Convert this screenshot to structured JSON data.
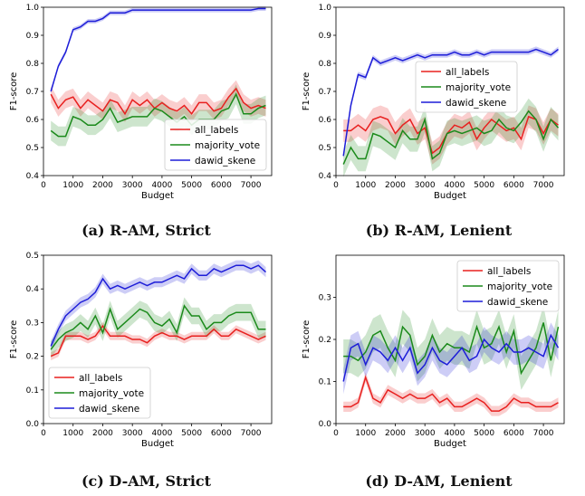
{
  "chart_data": [
    {
      "type": "line",
      "caption": "(a) R-AM, Strict",
      "xlabel": "Budget",
      "ylabel": "F1-score",
      "xlim": [
        0,
        7700
      ],
      "ylim": [
        0.4,
        1.0
      ],
      "xticks": [
        0,
        1000,
        2000,
        3000,
        4000,
        5000,
        6000,
        7000
      ],
      "yticks": [
        0.4,
        0.5,
        0.6,
        0.7,
        0.8,
        0.9,
        1.0
      ],
      "ytick_labels": [
        "0.4",
        "0.5",
        "0.6",
        "0.7",
        "0.8",
        "0.9",
        "1.0"
      ],
      "legend_position": "lower-right",
      "x": [
        250,
        500,
        750,
        1000,
        1250,
        1500,
        1750,
        2000,
        2250,
        2500,
        2750,
        3000,
        3250,
        3500,
        3750,
        4000,
        4250,
        4500,
        4750,
        5000,
        5250,
        5500,
        5750,
        6000,
        6250,
        6500,
        6750,
        7000,
        7250,
        7500
      ],
      "series": [
        {
          "name": "all_labels",
          "color": "#e8201f",
          "band": 0.03,
          "values": [
            0.69,
            0.64,
            0.67,
            0.68,
            0.64,
            0.67,
            0.65,
            0.63,
            0.67,
            0.66,
            0.62,
            0.67,
            0.65,
            0.67,
            0.64,
            0.66,
            0.64,
            0.63,
            0.65,
            0.62,
            0.66,
            0.66,
            0.63,
            0.64,
            0.68,
            0.71,
            0.66,
            0.64,
            0.65,
            0.64
          ]
        },
        {
          "name": "majority_vote",
          "color": "#1b8a1b",
          "band": 0.035,
          "values": [
            0.56,
            0.54,
            0.54,
            0.61,
            0.6,
            0.58,
            0.58,
            0.6,
            0.64,
            0.59,
            0.6,
            0.61,
            0.61,
            0.61,
            0.64,
            0.63,
            0.61,
            0.59,
            0.61,
            0.58,
            0.6,
            0.6,
            0.6,
            0.63,
            0.64,
            0.69,
            0.62,
            0.62,
            0.64,
            0.65
          ]
        },
        {
          "name": "dawid_skene",
          "color": "#1d1dd8",
          "band": 0.008,
          "values": [
            0.7,
            0.79,
            0.84,
            0.92,
            0.93,
            0.95,
            0.95,
            0.96,
            0.98,
            0.98,
            0.98,
            0.99,
            0.99,
            0.99,
            0.99,
            0.99,
            0.99,
            0.99,
            0.99,
            0.99,
            0.99,
            0.99,
            0.99,
            0.99,
            0.99,
            0.99,
            0.99,
            0.99,
            0.995,
            0.995
          ]
        }
      ]
    },
    {
      "type": "line",
      "caption": "(b) R-AM, Lenient",
      "xlabel": "Budget",
      "ylabel": "F1-score",
      "xlim": [
        0,
        7700
      ],
      "ylim": [
        0.4,
        1.0
      ],
      "xticks": [
        0,
        1000,
        2000,
        3000,
        4000,
        5000,
        6000,
        7000
      ],
      "yticks": [
        0.4,
        0.5,
        0.6,
        0.7,
        0.8,
        0.9,
        1.0
      ],
      "ytick_labels": [
        "0.4",
        "0.5",
        "0.6",
        "0.7",
        "0.8",
        "0.9",
        "1.0"
      ],
      "legend_position": "center",
      "x": [
        250,
        500,
        750,
        1000,
        1250,
        1500,
        1750,
        2000,
        2250,
        2500,
        2750,
        3000,
        3250,
        3500,
        3750,
        4000,
        4250,
        4500,
        4750,
        5000,
        5250,
        5500,
        5750,
        6000,
        6250,
        6500,
        6750,
        7000,
        7250,
        7500
      ],
      "series": [
        {
          "name": "all_labels",
          "color": "#e8201f",
          "band": 0.04,
          "values": [
            0.56,
            0.56,
            0.58,
            0.56,
            0.6,
            0.61,
            0.6,
            0.55,
            0.58,
            0.6,
            0.55,
            0.57,
            0.48,
            0.5,
            0.55,
            0.58,
            0.57,
            0.59,
            0.53,
            0.57,
            0.6,
            0.58,
            0.56,
            0.57,
            0.53,
            0.61,
            0.6,
            0.55,
            0.6,
            0.58
          ]
        },
        {
          "name": "majority_vote",
          "color": "#1b8a1b",
          "band": 0.045,
          "values": [
            0.44,
            0.5,
            0.46,
            0.46,
            0.55,
            0.54,
            0.52,
            0.5,
            0.56,
            0.53,
            0.53,
            0.6,
            0.46,
            0.48,
            0.55,
            0.56,
            0.55,
            0.56,
            0.57,
            0.55,
            0.56,
            0.6,
            0.57,
            0.56,
            0.59,
            0.63,
            0.6,
            0.53,
            0.6,
            0.57
          ]
        },
        {
          "name": "dawid_skene",
          "color": "#1d1dd8",
          "band": 0.01,
          "values": [
            0.47,
            0.65,
            0.76,
            0.75,
            0.82,
            0.8,
            0.81,
            0.82,
            0.81,
            0.82,
            0.83,
            0.82,
            0.83,
            0.83,
            0.83,
            0.84,
            0.83,
            0.83,
            0.84,
            0.83,
            0.84,
            0.84,
            0.84,
            0.84,
            0.84,
            0.84,
            0.85,
            0.84,
            0.83,
            0.85
          ]
        }
      ]
    },
    {
      "type": "line",
      "caption": "(c) D-AM, Strict",
      "xlabel": "Budget",
      "ylabel": "F1-score",
      "xlim": [
        0,
        7700
      ],
      "ylim": [
        0.0,
        0.5
      ],
      "xticks": [
        0,
        1000,
        2000,
        3000,
        4000,
        5000,
        6000,
        7000
      ],
      "yticks": [
        0.0,
        0.1,
        0.2,
        0.3,
        0.4,
        0.5
      ],
      "ytick_labels": [
        "0.0",
        "0.1",
        "0.2",
        "0.3",
        "0.4",
        "0.5"
      ],
      "legend_position": "lower-left",
      "x": [
        250,
        500,
        750,
        1000,
        1250,
        1500,
        1750,
        2000,
        2250,
        2500,
        2750,
        3000,
        3250,
        3500,
        3750,
        4000,
        4250,
        4500,
        4750,
        5000,
        5250,
        5500,
        5750,
        6000,
        6250,
        6500,
        6750,
        7000,
        7250,
        7500
      ],
      "series": [
        {
          "name": "all_labels",
          "color": "#e8201f",
          "band": 0.012,
          "values": [
            0.2,
            0.21,
            0.26,
            0.26,
            0.26,
            0.25,
            0.26,
            0.29,
            0.26,
            0.26,
            0.26,
            0.25,
            0.25,
            0.24,
            0.26,
            0.27,
            0.26,
            0.26,
            0.25,
            0.26,
            0.26,
            0.26,
            0.28,
            0.26,
            0.26,
            0.28,
            0.27,
            0.26,
            0.25,
            0.26
          ]
        },
        {
          "name": "majority_vote",
          "color": "#1b8a1b",
          "band": 0.025,
          "values": [
            0.22,
            0.25,
            0.27,
            0.28,
            0.3,
            0.28,
            0.32,
            0.27,
            0.34,
            0.28,
            0.3,
            0.32,
            0.34,
            0.33,
            0.3,
            0.29,
            0.31,
            0.27,
            0.35,
            0.32,
            0.32,
            0.28,
            0.3,
            0.3,
            0.32,
            0.33,
            0.33,
            0.33,
            0.28,
            0.28
          ]
        },
        {
          "name": "dawid_skene",
          "color": "#1d1dd8",
          "band": 0.015,
          "values": [
            0.23,
            0.28,
            0.32,
            0.34,
            0.36,
            0.37,
            0.39,
            0.43,
            0.4,
            0.41,
            0.4,
            0.41,
            0.42,
            0.41,
            0.42,
            0.42,
            0.43,
            0.44,
            0.43,
            0.46,
            0.44,
            0.44,
            0.46,
            0.45,
            0.46,
            0.47,
            0.47,
            0.46,
            0.47,
            0.45
          ]
        }
      ]
    },
    {
      "type": "line",
      "caption": "(d) D-AM, Lenient",
      "xlabel": "Budget",
      "ylabel": "F1-score",
      "xlim": [
        0,
        7700
      ],
      "ylim": [
        0.0,
        0.4
      ],
      "xticks": [
        0,
        1000,
        2000,
        3000,
        4000,
        5000,
        6000,
        7000
      ],
      "yticks": [
        0.0,
        0.1,
        0.2,
        0.3
      ],
      "ytick_labels": [
        "0.0",
        "0.1",
        "0.2",
        "0.3"
      ],
      "legend_position": "upper-right",
      "x": [
        250,
        500,
        750,
        1000,
        1250,
        1500,
        1750,
        2000,
        2250,
        2500,
        2750,
        3000,
        3250,
        3500,
        3750,
        4000,
        4250,
        4500,
        4750,
        5000,
        5250,
        5500,
        5750,
        6000,
        6250,
        6500,
        6750,
        7000,
        7250,
        7500
      ],
      "series": [
        {
          "name": "all_labels",
          "color": "#e8201f",
          "band": 0.012,
          "values": [
            0.04,
            0.04,
            0.05,
            0.11,
            0.06,
            0.05,
            0.08,
            0.07,
            0.06,
            0.07,
            0.06,
            0.06,
            0.07,
            0.05,
            0.06,
            0.04,
            0.04,
            0.05,
            0.06,
            0.05,
            0.03,
            0.03,
            0.04,
            0.06,
            0.05,
            0.05,
            0.04,
            0.04,
            0.04,
            0.05
          ]
        },
        {
          "name": "majority_vote",
          "color": "#1b8a1b",
          "band": 0.04,
          "values": [
            0.16,
            0.16,
            0.15,
            0.17,
            0.21,
            0.22,
            0.18,
            0.15,
            0.23,
            0.21,
            0.14,
            0.16,
            0.21,
            0.17,
            0.19,
            0.18,
            0.18,
            0.17,
            0.23,
            0.18,
            0.19,
            0.23,
            0.17,
            0.22,
            0.12,
            0.15,
            0.18,
            0.24,
            0.15,
            0.23
          ]
        },
        {
          "name": "dawid_skene",
          "color": "#1d1dd8",
          "band": 0.03,
          "values": [
            0.1,
            0.18,
            0.19,
            0.14,
            0.18,
            0.17,
            0.15,
            0.18,
            0.15,
            0.18,
            0.12,
            0.14,
            0.18,
            0.15,
            0.14,
            0.16,
            0.18,
            0.15,
            0.16,
            0.2,
            0.18,
            0.17,
            0.19,
            0.17,
            0.17,
            0.18,
            0.17,
            0.16,
            0.21,
            0.18
          ]
        }
      ]
    }
  ]
}
